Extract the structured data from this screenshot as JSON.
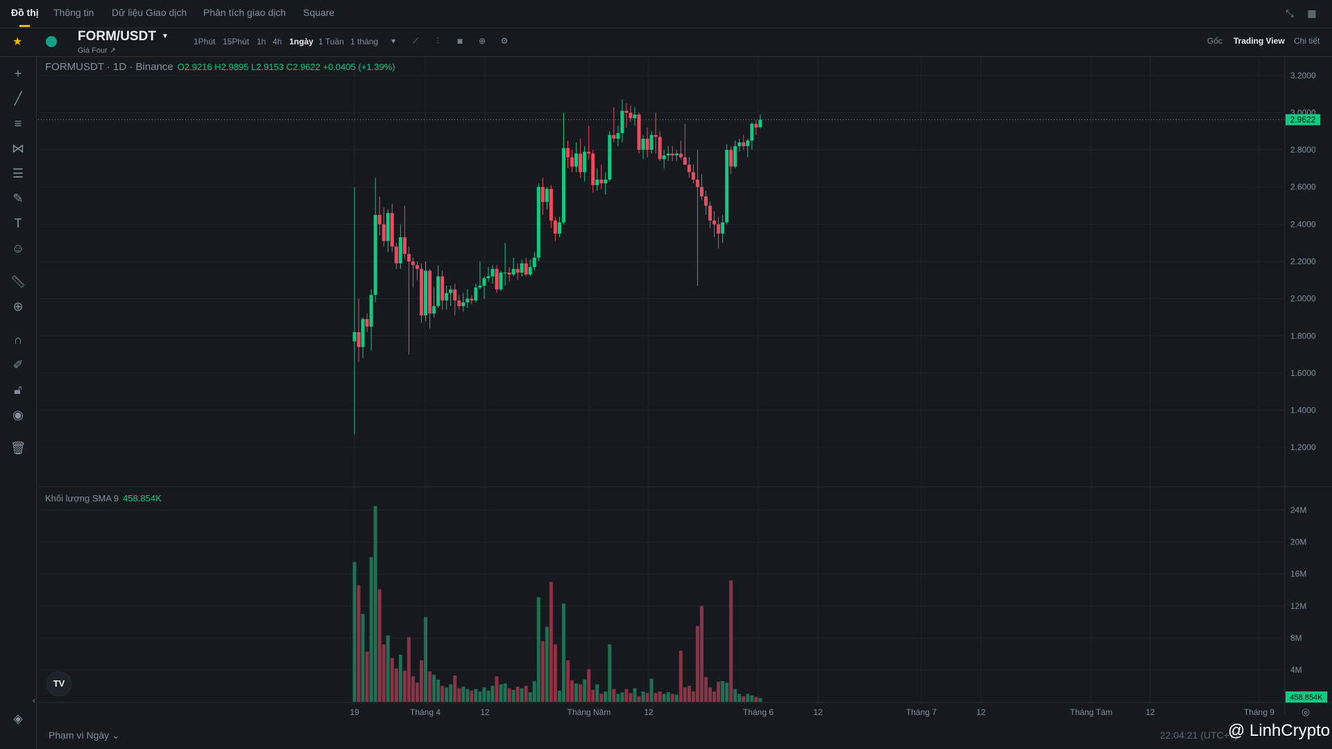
{
  "tabs": {
    "items": [
      "Đồ thị",
      "Thông tin",
      "Dữ liệu Giao dịch",
      "Phân tích giao dịch",
      "Square"
    ],
    "active_index": 0
  },
  "symbol": {
    "pair": "FORM/USDT",
    "sub_label": "Giá Four ↗"
  },
  "intervals": {
    "items": [
      "1Phút",
      "15Phút",
      "1h",
      "4h",
      "1ngày",
      "1 Tuần",
      "1 tháng"
    ],
    "active": "1ngày"
  },
  "view_options": {
    "items": [
      "Gốc",
      "Trading View",
      "Chi tiết"
    ],
    "active": "Trading View"
  },
  "legend": {
    "title": "FORMUSDT · 1D · Binance",
    "ohlc": "O2.9216  H2.9895  L2.9153  C2.9622  +0.0405 (+1.39%)"
  },
  "volume_legend": {
    "label": "Khối lượng SMA 9",
    "value": "458.854K"
  },
  "price_axis": {
    "ticks": [
      "3.2000",
      "3.0000",
      "2.8000",
      "2.6000",
      "2.4000",
      "2.2000",
      "2.0000",
      "1.8000",
      "1.6000",
      "1.4000",
      "1.2000"
    ],
    "last_price": "2.9622"
  },
  "volume_axis": {
    "ticks": [
      "24M",
      "20M",
      "16M",
      "12M",
      "8M",
      "4M"
    ],
    "last_value": "458.854K"
  },
  "time_axis": {
    "labels": [
      "19",
      "Tháng 4",
      "12",
      "Tháng Năm",
      "12",
      "Tháng 6",
      "12",
      "Tháng 7",
      "12",
      "Tháng Tám",
      "12",
      "Tháng 9"
    ]
  },
  "footer": {
    "range_label": "Phạm vi Ngày ⌄",
    "timestamp": "22:04:21 (UTC+7)",
    "watermark": "@ LinhCrypto"
  },
  "colors": {
    "up": "#0ecb81",
    "down": "#f6465d",
    "up_volume": "#1f6f52",
    "down_volume": "#8e3144",
    "accent": "#f0b90b",
    "background": "#161a1e"
  },
  "chart_data": {
    "type": "candlestick",
    "title": "FORMUSDT · 1D · Binance",
    "ylim": [
      1.1,
      3.3
    ],
    "volume_ylim": [
      0,
      26
    ],
    "volume_unit": "M",
    "candles": [
      {
        "o": 1.77,
        "h": 2.6,
        "l": 1.27,
        "c": 1.82,
        "v": 17.5
      },
      {
        "o": 1.82,
        "h": 2.0,
        "l": 1.66,
        "c": 1.74,
        "v": 14.6
      },
      {
        "o": 1.74,
        "h": 1.9,
        "l": 1.68,
        "c": 1.89,
        "v": 11.0
      },
      {
        "o": 1.89,
        "h": 1.92,
        "l": 1.82,
        "c": 1.85,
        "v": 6.3
      },
      {
        "o": 1.85,
        "h": 2.05,
        "l": 1.72,
        "c": 2.02,
        "v": 18.1
      },
      {
        "o": 2.02,
        "h": 2.65,
        "l": 1.98,
        "c": 2.45,
        "v": 24.5
      },
      {
        "o": 2.45,
        "h": 2.55,
        "l": 2.34,
        "c": 2.4,
        "v": 14.1
      },
      {
        "o": 2.4,
        "h": 2.49,
        "l": 2.28,
        "c": 2.31,
        "v": 7.2
      },
      {
        "o": 2.31,
        "h": 2.48,
        "l": 2.25,
        "c": 2.46,
        "v": 8.3
      },
      {
        "o": 2.46,
        "h": 2.51,
        "l": 2.25,
        "c": 2.28,
        "v": 5.5
      },
      {
        "o": 2.28,
        "h": 2.3,
        "l": 2.16,
        "c": 2.19,
        "v": 4.2
      },
      {
        "o": 2.19,
        "h": 2.4,
        "l": 2.16,
        "c": 2.33,
        "v": 5.9
      },
      {
        "o": 2.33,
        "h": 2.5,
        "l": 2.21,
        "c": 2.24,
        "v": 3.9
      },
      {
        "o": 2.24,
        "h": 2.28,
        "l": 1.7,
        "c": 2.2,
        "v": 8.1
      },
      {
        "o": 2.2,
        "h": 2.22,
        "l": 2.06,
        "c": 2.18,
        "v": 3.2
      },
      {
        "o": 2.18,
        "h": 2.2,
        "l": 2.1,
        "c": 2.16,
        "v": 2.4
      },
      {
        "o": 2.16,
        "h": 2.19,
        "l": 1.87,
        "c": 1.91,
        "v": 5.2
      },
      {
        "o": 1.91,
        "h": 2.2,
        "l": 1.88,
        "c": 2.15,
        "v": 10.6
      },
      {
        "o": 2.15,
        "h": 2.16,
        "l": 1.84,
        "c": 1.92,
        "v": 3.8
      },
      {
        "o": 1.92,
        "h": 2.06,
        "l": 1.9,
        "c": 1.96,
        "v": 3.4
      },
      {
        "o": 1.96,
        "h": 2.18,
        "l": 1.95,
        "c": 2.12,
        "v": 2.8
      },
      {
        "o": 2.12,
        "h": 2.15,
        "l": 1.94,
        "c": 1.99,
        "v": 2.0
      },
      {
        "o": 1.99,
        "h": 2.07,
        "l": 1.94,
        "c": 2.03,
        "v": 1.8
      },
      {
        "o": 2.03,
        "h": 2.07,
        "l": 1.96,
        "c": 2.05,
        "v": 2.2
      },
      {
        "o": 2.05,
        "h": 2.08,
        "l": 1.91,
        "c": 1.99,
        "v": 3.3
      },
      {
        "o": 1.99,
        "h": 2.02,
        "l": 1.94,
        "c": 1.96,
        "v": 1.7
      },
      {
        "o": 1.96,
        "h": 2.03,
        "l": 1.93,
        "c": 1.98,
        "v": 1.9
      },
      {
        "o": 1.98,
        "h": 2.05,
        "l": 1.95,
        "c": 2.0,
        "v": 1.6
      },
      {
        "o": 2.0,
        "h": 2.02,
        "l": 1.97,
        "c": 1.99,
        "v": 1.4
      },
      {
        "o": 1.99,
        "h": 2.08,
        "l": 1.98,
        "c": 2.06,
        "v": 1.6
      },
      {
        "o": 2.06,
        "h": 2.2,
        "l": 2.05,
        "c": 2.07,
        "v": 1.3
      },
      {
        "o": 2.07,
        "h": 2.12,
        "l": 2.0,
        "c": 2.11,
        "v": 1.8
      },
      {
        "o": 2.11,
        "h": 2.17,
        "l": 2.09,
        "c": 2.12,
        "v": 1.4
      },
      {
        "o": 2.12,
        "h": 2.18,
        "l": 2.08,
        "c": 2.16,
        "v": 2.0
      },
      {
        "o": 2.16,
        "h": 2.18,
        "l": 2.03,
        "c": 2.05,
        "v": 3.2
      },
      {
        "o": 2.05,
        "h": 2.15,
        "l": 2.04,
        "c": 2.14,
        "v": 2.2
      },
      {
        "o": 2.14,
        "h": 2.3,
        "l": 2.07,
        "c": 2.14,
        "v": 2.3
      },
      {
        "o": 2.14,
        "h": 2.17,
        "l": 2.09,
        "c": 2.13,
        "v": 1.7
      },
      {
        "o": 2.13,
        "h": 2.22,
        "l": 2.12,
        "c": 2.16,
        "v": 1.5
      },
      {
        "o": 2.16,
        "h": 2.19,
        "l": 2.1,
        "c": 2.14,
        "v": 1.9
      },
      {
        "o": 2.14,
        "h": 2.21,
        "l": 2.12,
        "c": 2.19,
        "v": 1.7
      },
      {
        "o": 2.19,
        "h": 2.22,
        "l": 2.12,
        "c": 2.13,
        "v": 2.0
      },
      {
        "o": 2.13,
        "h": 2.21,
        "l": 2.12,
        "c": 2.17,
        "v": 1.2
      },
      {
        "o": 2.17,
        "h": 2.25,
        "l": 2.15,
        "c": 2.22,
        "v": 2.6
      },
      {
        "o": 2.22,
        "h": 2.62,
        "l": 2.2,
        "c": 2.6,
        "v": 13.1
      },
      {
        "o": 2.6,
        "h": 2.65,
        "l": 2.45,
        "c": 2.52,
        "v": 7.6
      },
      {
        "o": 2.52,
        "h": 2.6,
        "l": 2.48,
        "c": 2.59,
        "v": 9.4
      },
      {
        "o": 2.59,
        "h": 2.61,
        "l": 2.38,
        "c": 2.42,
        "v": 15.0
      },
      {
        "o": 2.42,
        "h": 2.44,
        "l": 2.31,
        "c": 2.35,
        "v": 7.2
      },
      {
        "o": 2.35,
        "h": 2.44,
        "l": 2.33,
        "c": 2.41,
        "v": 1.4
      },
      {
        "o": 2.41,
        "h": 3.0,
        "l": 2.4,
        "c": 2.81,
        "v": 12.3
      },
      {
        "o": 2.81,
        "h": 2.85,
        "l": 2.7,
        "c": 2.76,
        "v": 5.2
      },
      {
        "o": 2.76,
        "h": 2.8,
        "l": 2.68,
        "c": 2.71,
        "v": 2.7
      },
      {
        "o": 2.71,
        "h": 2.84,
        "l": 2.68,
        "c": 2.78,
        "v": 2.3
      },
      {
        "o": 2.78,
        "h": 2.86,
        "l": 2.65,
        "c": 2.68,
        "v": 2.2
      },
      {
        "o": 2.68,
        "h": 2.82,
        "l": 2.63,
        "c": 2.79,
        "v": 2.8
      },
      {
        "o": 2.79,
        "h": 2.93,
        "l": 2.75,
        "c": 2.78,
        "v": 4.1
      },
      {
        "o": 2.78,
        "h": 2.8,
        "l": 2.57,
        "c": 2.61,
        "v": 1.5
      },
      {
        "o": 2.61,
        "h": 2.7,
        "l": 2.58,
        "c": 2.64,
        "v": 2.2
      },
      {
        "o": 2.64,
        "h": 2.72,
        "l": 2.59,
        "c": 2.62,
        "v": 1.0
      },
      {
        "o": 2.62,
        "h": 2.68,
        "l": 2.56,
        "c": 2.64,
        "v": 1.3
      },
      {
        "o": 2.64,
        "h": 2.9,
        "l": 2.63,
        "c": 2.88,
        "v": 7.2
      },
      {
        "o": 2.88,
        "h": 3.03,
        "l": 2.84,
        "c": 2.86,
        "v": 1.6
      },
      {
        "o": 2.86,
        "h": 2.93,
        "l": 2.82,
        "c": 2.89,
        "v": 1.0
      },
      {
        "o": 2.89,
        "h": 3.07,
        "l": 2.84,
        "c": 3.01,
        "v": 1.2
      },
      {
        "o": 3.01,
        "h": 3.05,
        "l": 2.92,
        "c": 3.0,
        "v": 1.6
      },
      {
        "o": 3.0,
        "h": 3.04,
        "l": 2.95,
        "c": 2.97,
        "v": 1.1
      },
      {
        "o": 2.97,
        "h": 3.03,
        "l": 2.93,
        "c": 2.99,
        "v": 1.7
      },
      {
        "o": 2.99,
        "h": 3.0,
        "l": 2.78,
        "c": 2.8,
        "v": 0.7
      },
      {
        "o": 2.8,
        "h": 2.88,
        "l": 2.75,
        "c": 2.86,
        "v": 1.3
      },
      {
        "o": 2.86,
        "h": 2.92,
        "l": 2.76,
        "c": 2.8,
        "v": 1.1
      },
      {
        "o": 2.8,
        "h": 2.9,
        "l": 2.78,
        "c": 2.88,
        "v": 2.9
      },
      {
        "o": 2.88,
        "h": 3.0,
        "l": 2.78,
        "c": 2.87,
        "v": 1.1
      },
      {
        "o": 2.87,
        "h": 2.9,
        "l": 2.74,
        "c": 2.75,
        "v": 1.3
      },
      {
        "o": 2.75,
        "h": 2.8,
        "l": 2.7,
        "c": 2.77,
        "v": 1.0
      },
      {
        "o": 2.77,
        "h": 2.82,
        "l": 2.74,
        "c": 2.78,
        "v": 1.2
      },
      {
        "o": 2.78,
        "h": 2.82,
        "l": 2.74,
        "c": 2.77,
        "v": 1.0
      },
      {
        "o": 2.77,
        "h": 2.8,
        "l": 2.74,
        "c": 2.78,
        "v": 0.9
      },
      {
        "o": 2.78,
        "h": 2.85,
        "l": 2.75,
        "c": 2.76,
        "v": 6.4
      },
      {
        "o": 2.76,
        "h": 2.94,
        "l": 2.72,
        "c": 2.72,
        "v": 1.8
      },
      {
        "o": 2.72,
        "h": 2.76,
        "l": 2.65,
        "c": 2.68,
        "v": 2.0
      },
      {
        "o": 2.68,
        "h": 2.72,
        "l": 2.62,
        "c": 2.64,
        "v": 1.3
      },
      {
        "o": 2.64,
        "h": 2.8,
        "l": 2.07,
        "c": 2.6,
        "v": 9.5
      },
      {
        "o": 2.6,
        "h": 2.67,
        "l": 2.53,
        "c": 2.55,
        "v": 12.0
      },
      {
        "o": 2.55,
        "h": 2.58,
        "l": 2.45,
        "c": 2.5,
        "v": 3.1
      },
      {
        "o": 2.5,
        "h": 2.52,
        "l": 2.38,
        "c": 2.42,
        "v": 1.8
      },
      {
        "o": 2.42,
        "h": 2.47,
        "l": 2.33,
        "c": 2.4,
        "v": 1.3
      },
      {
        "o": 2.4,
        "h": 2.44,
        "l": 2.27,
        "c": 2.35,
        "v": 2.5
      },
      {
        "o": 2.35,
        "h": 2.45,
        "l": 2.3,
        "c": 2.41,
        "v": 2.6
      },
      {
        "o": 2.41,
        "h": 2.83,
        "l": 2.4,
        "c": 2.8,
        "v": 2.4
      },
      {
        "o": 2.8,
        "h": 2.82,
        "l": 2.67,
        "c": 2.71,
        "v": 15.2
      },
      {
        "o": 2.71,
        "h": 2.85,
        "l": 2.7,
        "c": 2.82,
        "v": 1.6
      },
      {
        "o": 2.82,
        "h": 2.86,
        "l": 2.79,
        "c": 2.84,
        "v": 1.0
      },
      {
        "o": 2.84,
        "h": 2.88,
        "l": 2.8,
        "c": 2.82,
        "v": 0.7
      },
      {
        "o": 2.82,
        "h": 2.86,
        "l": 2.76,
        "c": 2.85,
        "v": 1.0
      },
      {
        "o": 2.85,
        "h": 2.95,
        "l": 2.8,
        "c": 2.94,
        "v": 0.8
      },
      {
        "o": 2.94,
        "h": 2.96,
        "l": 2.88,
        "c": 2.92,
        "v": 0.6
      },
      {
        "o": 2.9216,
        "h": 2.9895,
        "l": 2.9153,
        "c": 2.9622,
        "v": 0.46
      }
    ]
  }
}
